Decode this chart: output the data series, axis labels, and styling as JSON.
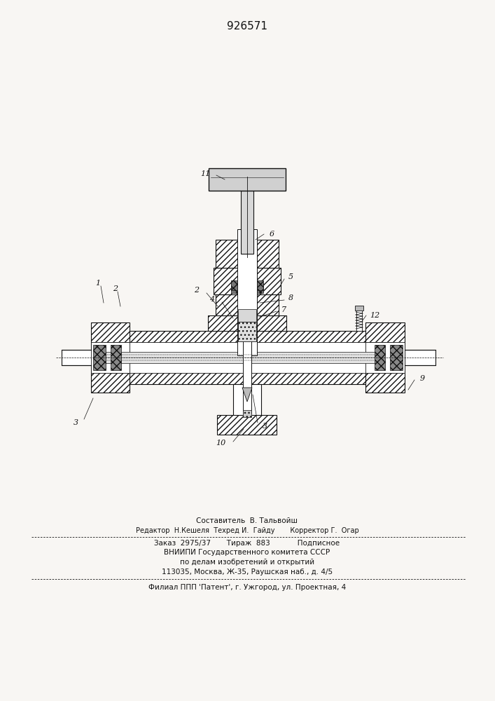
{
  "patent_number": "926571",
  "bg": "#f8f6f3",
  "lc": "#111111",
  "footer_line1": "Составитель  В. Тальвойш",
  "footer_line2": "Редактор  Н.Кешеля  Техред И.  Гайду       Корректор Г.  Огар",
  "footer_line3": "Заказ  2975/37       Тираж  883            Подписное",
  "footer_line4": "ВНИИПИ Государственного комитета СССР",
  "footer_line5": "по делам изобретений и открытий",
  "footer_line6": "113035, Москва, Ж-35, Раушская наб., д. 4/5",
  "footer_line7": "Филиал ППП 'Патент', г. Ужгород, ул. Проектная, 4"
}
